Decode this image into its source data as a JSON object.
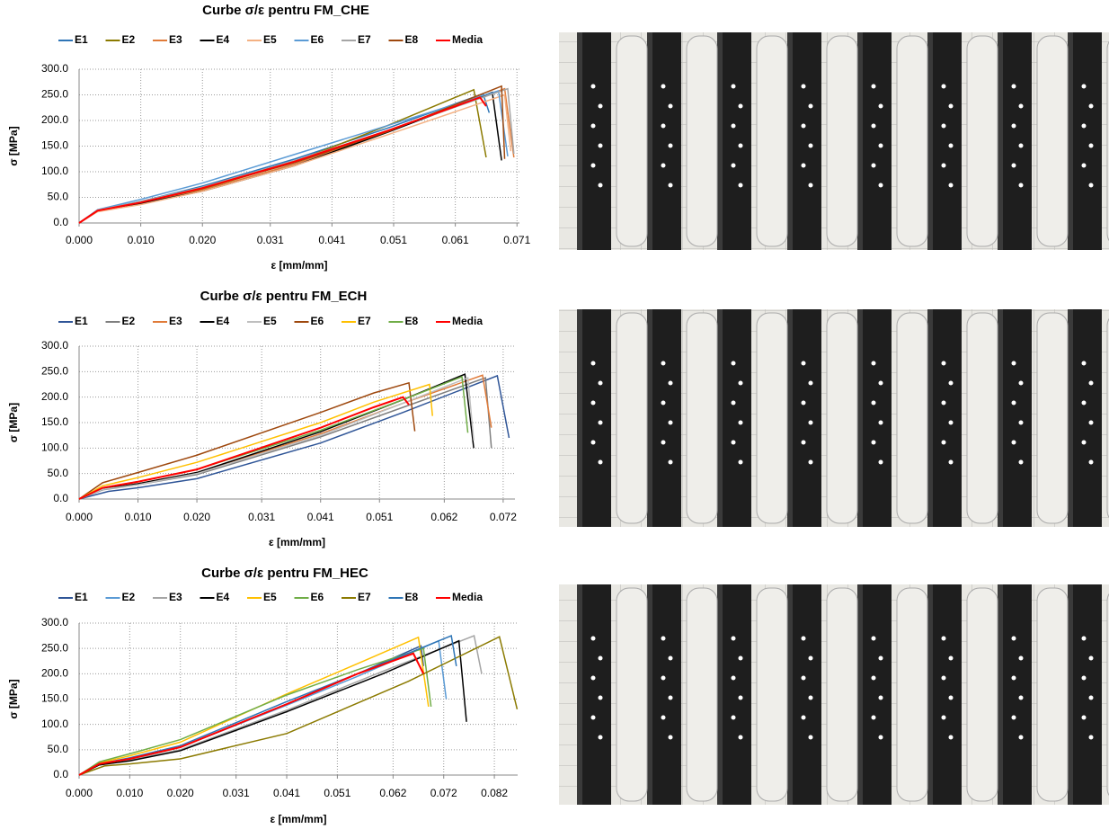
{
  "chart_data": [
    {
      "type": "line",
      "title": "Curbe σ/ε pentru FM_CHE",
      "x_label": "ε [mm/mm]",
      "y_label": "σ [MPa]",
      "grid": true,
      "xlim": [
        0,
        0.0714
      ],
      "ylim": [
        0,
        300
      ],
      "xticks": [
        {
          "value": 0,
          "label": "0.000"
        },
        {
          "value": 0.01,
          "label": "0.010"
        },
        {
          "value": 0.02,
          "label": "0.020"
        },
        {
          "value": 0.031,
          "label": "0.031"
        },
        {
          "value": 0.041,
          "label": "0.041"
        },
        {
          "value": 0.051,
          "label": "0.051"
        },
        {
          "value": 0.061,
          "label": "0.061"
        },
        {
          "value": 0.071,
          "label": "0.071"
        }
      ],
      "yticks": [
        {
          "value": 0,
          "label": "0.0"
        },
        {
          "value": 50,
          "label": "50.0"
        },
        {
          "value": 100,
          "label": "100.0"
        },
        {
          "value": 150,
          "label": "150.0"
        },
        {
          "value": 200,
          "label": "200.0"
        },
        {
          "value": 250,
          "label": "250.0"
        },
        {
          "value": 300,
          "label": "300.0"
        }
      ],
      "series": [
        {
          "name": "E1",
          "color": "#2e75b6",
          "x": [
            0,
            0.003,
            0.01,
            0.02,
            0.035,
            0.05,
            0.0655,
            0.0665
          ],
          "values": [
            0,
            25,
            42,
            72,
            125,
            185,
            252,
            215
          ]
        },
        {
          "name": "E2",
          "color": "#8b7a00",
          "x": [
            0,
            0.003,
            0.01,
            0.02,
            0.035,
            0.05,
            0.064,
            0.066
          ],
          "values": [
            0,
            24,
            40,
            66,
            120,
            190,
            260,
            128
          ]
        },
        {
          "name": "E3",
          "color": "#e07b39",
          "x": [
            0,
            0.003,
            0.01,
            0.02,
            0.035,
            0.05,
            0.069,
            0.0705
          ],
          "values": [
            0,
            24,
            38,
            64,
            115,
            178,
            262,
            128
          ]
        },
        {
          "name": "E4",
          "color": "#000000",
          "x": [
            0,
            0.003,
            0.01,
            0.02,
            0.035,
            0.05,
            0.067,
            0.0685
          ],
          "values": [
            0,
            23,
            38,
            62,
            112,
            177,
            255,
            122
          ]
        },
        {
          "name": "E5",
          "color": "#f4b183",
          "x": [
            0,
            0.003,
            0.01,
            0.02,
            0.035,
            0.05,
            0.069,
            0.07
          ],
          "values": [
            0,
            22,
            36,
            62,
            112,
            172,
            250,
            140
          ]
        },
        {
          "name": "E6",
          "color": "#5b9bd5",
          "x": [
            0,
            0.003,
            0.01,
            0.02,
            0.035,
            0.05,
            0.068,
            0.0695
          ],
          "values": [
            0,
            26,
            46,
            78,
            134,
            190,
            258,
            130
          ]
        },
        {
          "name": "E7",
          "color": "#a5a5a5",
          "x": [
            0,
            0.003,
            0.01,
            0.02,
            0.035,
            0.05,
            0.0695,
            0.0705
          ],
          "values": [
            0,
            25,
            42,
            70,
            122,
            180,
            262,
            135
          ]
        },
        {
          "name": "E8",
          "color": "#9e480e",
          "x": [
            0,
            0.003,
            0.01,
            0.02,
            0.035,
            0.05,
            0.0685,
            0.069
          ],
          "values": [
            0,
            24,
            40,
            68,
            118,
            178,
            267,
            125
          ]
        },
        {
          "name": "Media",
          "color": "#ff0000",
          "x": [
            0,
            0.003,
            0.01,
            0.02,
            0.035,
            0.05,
            0.065,
            0.066
          ],
          "values": [
            0,
            24,
            40,
            68,
            120,
            180,
            245,
            228
          ]
        }
      ]
    },
    {
      "type": "line",
      "title": "Curbe σ/ε pentru FM_ECH",
      "x_label": "ε [mm/mm]",
      "y_label": "σ [MPa]",
      "grid": true,
      "xlim": [
        0,
        0.074
      ],
      "ylim": [
        0,
        300
      ],
      "xticks": [
        {
          "value": 0,
          "label": "0.000"
        },
        {
          "value": 0.01,
          "label": "0.010"
        },
        {
          "value": 0.02,
          "label": "0.020"
        },
        {
          "value": 0.031,
          "label": "0.031"
        },
        {
          "value": 0.041,
          "label": "0.041"
        },
        {
          "value": 0.051,
          "label": "0.051"
        },
        {
          "value": 0.062,
          "label": "0.062"
        },
        {
          "value": 0.072,
          "label": "0.072"
        }
      ],
      "yticks": [
        {
          "value": 0,
          "label": "0.0"
        },
        {
          "value": 50,
          "label": "50.0"
        },
        {
          "value": 100,
          "label": "100.0"
        },
        {
          "value": 150,
          "label": "150.0"
        },
        {
          "value": 200,
          "label": "200.0"
        },
        {
          "value": 250,
          "label": "250.0"
        },
        {
          "value": 300,
          "label": "300.0"
        }
      ],
      "series": [
        {
          "name": "E1",
          "color": "#2f5597",
          "x": [
            0,
            0.005,
            0.01,
            0.02,
            0.041,
            0.055,
            0.071,
            0.073
          ],
          "values": [
            0,
            15,
            22,
            40,
            110,
            170,
            242,
            120
          ]
        },
        {
          "name": "E2",
          "color": "#7f7f7f",
          "x": [
            0,
            0.004,
            0.01,
            0.02,
            0.041,
            0.055,
            0.069,
            0.07
          ],
          "values": [
            0,
            18,
            28,
            48,
            122,
            180,
            238,
            100
          ]
        },
        {
          "name": "E3",
          "color": "#e07b39",
          "x": [
            0,
            0.004,
            0.01,
            0.02,
            0.041,
            0.055,
            0.0685,
            0.07
          ],
          "values": [
            0,
            20,
            30,
            52,
            128,
            188,
            243,
            140
          ]
        },
        {
          "name": "E4",
          "color": "#000000",
          "x": [
            0,
            0.004,
            0.01,
            0.02,
            0.041,
            0.055,
            0.0655,
            0.067
          ],
          "values": [
            0,
            20,
            30,
            52,
            132,
            195,
            245,
            100
          ]
        },
        {
          "name": "E5",
          "color": "#bfbfbf",
          "x": [
            0,
            0.004,
            0.01,
            0.02,
            0.041,
            0.055,
            0.066,
            0.067
          ],
          "values": [
            0,
            19,
            28,
            50,
            125,
            188,
            238,
            115
          ]
        },
        {
          "name": "E6",
          "color": "#9e480e",
          "x": [
            0,
            0.004,
            0.01,
            0.02,
            0.041,
            0.05,
            0.056,
            0.057
          ],
          "values": [
            0,
            32,
            52,
            86,
            170,
            208,
            228,
            133
          ]
        },
        {
          "name": "E7",
          "color": "#ffc000",
          "x": [
            0,
            0.004,
            0.01,
            0.02,
            0.041,
            0.05,
            0.0595,
            0.06
          ],
          "values": [
            0,
            26,
            42,
            72,
            150,
            190,
            225,
            163
          ]
        },
        {
          "name": "E8",
          "color": "#70ad47",
          "x": [
            0,
            0.004,
            0.01,
            0.02,
            0.041,
            0.055,
            0.065,
            0.066
          ],
          "values": [
            0,
            22,
            34,
            58,
            135,
            195,
            240,
            130
          ]
        },
        {
          "name": "Media",
          "color": "#ff0000",
          "x": [
            0,
            0.004,
            0.01,
            0.02,
            0.041,
            0.05,
            0.055,
            0.056
          ],
          "values": [
            0,
            22,
            34,
            58,
            140,
            180,
            200,
            185
          ]
        }
      ]
    },
    {
      "type": "line",
      "title": "Curbe σ/ε pentru FM_HEC",
      "x_label": "ε [mm/mm]",
      "y_label": "σ [MPa]",
      "grid": true,
      "xlim": [
        0,
        0.0866
      ],
      "ylim": [
        0,
        300
      ],
      "xticks": [
        {
          "value": 0,
          "label": "0.000"
        },
        {
          "value": 0.01,
          "label": "0.010"
        },
        {
          "value": 0.02,
          "label": "0.020"
        },
        {
          "value": 0.031,
          "label": "0.031"
        },
        {
          "value": 0.041,
          "label": "0.041"
        },
        {
          "value": 0.051,
          "label": "0.051"
        },
        {
          "value": 0.062,
          "label": "0.062"
        },
        {
          "value": 0.072,
          "label": "0.072"
        },
        {
          "value": 0.082,
          "label": "0.082"
        }
      ],
      "yticks": [
        {
          "value": 0,
          "label": "0.0"
        },
        {
          "value": 50,
          "label": "50.0"
        },
        {
          "value": 100,
          "label": "100.0"
        },
        {
          "value": 150,
          "label": "150.0"
        },
        {
          "value": 200,
          "label": "200.0"
        },
        {
          "value": 250,
          "label": "250.0"
        },
        {
          "value": 300,
          "label": "300.0"
        }
      ],
      "series": [
        {
          "name": "E1",
          "color": "#2f5597",
          "x": [
            0,
            0.004,
            0.01,
            0.02,
            0.041,
            0.055,
            0.0675,
            0.068
          ],
          "values": [
            0,
            22,
            32,
            55,
            140,
            200,
            255,
            215
          ]
        },
        {
          "name": "E2",
          "color": "#5b9bd5",
          "x": [
            0,
            0.004,
            0.01,
            0.02,
            0.041,
            0.055,
            0.071,
            0.0725
          ],
          "values": [
            0,
            22,
            32,
            55,
            138,
            195,
            265,
            150
          ]
        },
        {
          "name": "E3",
          "color": "#a5a5a5",
          "x": [
            0,
            0.004,
            0.01,
            0.02,
            0.041,
            0.06,
            0.078,
            0.0795
          ],
          "values": [
            0,
            20,
            30,
            50,
            128,
            205,
            275,
            200
          ]
        },
        {
          "name": "E4",
          "color": "#000000",
          "x": [
            0,
            0.004,
            0.01,
            0.02,
            0.041,
            0.06,
            0.075,
            0.0765
          ],
          "values": [
            0,
            20,
            28,
            48,
            125,
            200,
            265,
            105
          ]
        },
        {
          "name": "E5",
          "color": "#ffc000",
          "x": [
            0,
            0.004,
            0.01,
            0.02,
            0.041,
            0.055,
            0.067,
            0.069
          ],
          "values": [
            0,
            24,
            38,
            65,
            160,
            220,
            272,
            135
          ]
        },
        {
          "name": "E6",
          "color": "#70ad47",
          "x": [
            0,
            0.004,
            0.01,
            0.02,
            0.041,
            0.055,
            0.068,
            0.0695
          ],
          "values": [
            0,
            26,
            42,
            70,
            158,
            208,
            250,
            135
          ]
        },
        {
          "name": "E7",
          "color": "#8b7a00",
          "x": [
            0,
            0.005,
            0.01,
            0.02,
            0.041,
            0.065,
            0.083,
            0.0865
          ],
          "values": [
            0,
            18,
            22,
            32,
            82,
            185,
            273,
            130
          ]
        },
        {
          "name": "E8",
          "color": "#2e75b6",
          "x": [
            0,
            0.004,
            0.01,
            0.02,
            0.041,
            0.06,
            0.0735,
            0.0745
          ],
          "values": [
            0,
            22,
            34,
            58,
            145,
            220,
            275,
            215
          ]
        },
        {
          "name": "Media",
          "color": "#ff0000",
          "x": [
            0,
            0.004,
            0.01,
            0.02,
            0.041,
            0.055,
            0.066,
            0.068
          ],
          "values": [
            0,
            22,
            32,
            55,
            140,
            200,
            240,
            200
          ]
        }
      ]
    }
  ]
}
